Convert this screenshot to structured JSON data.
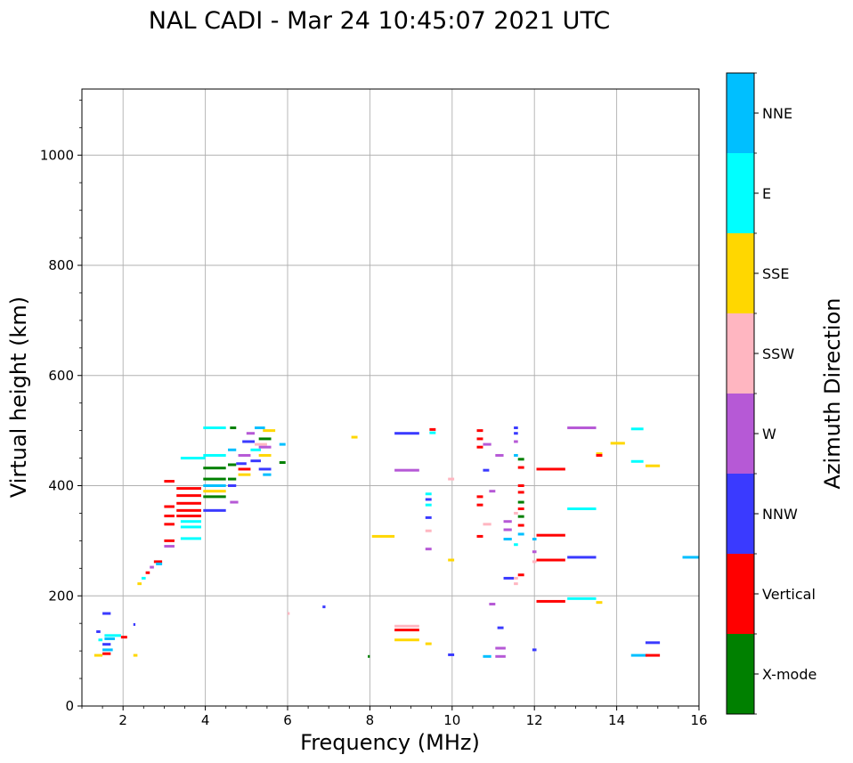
{
  "chart_data": {
    "type": "scatter",
    "title": "NAL CADI - Mar 24 10:45:07 2021 UTC",
    "xlabel": "Frequency (MHz)",
    "ylabel": "Virtual height (km)",
    "xlim": [
      1,
      16
    ],
    "ylim": [
      0,
      1120
    ],
    "xticks": [
      2,
      4,
      6,
      8,
      10,
      12,
      14,
      16
    ],
    "yticks": [
      0,
      200,
      400,
      600,
      800,
      1000
    ],
    "grid": true,
    "colorbar": {
      "label": "Azimuth Direction",
      "categories": [
        {
          "name": "X-mode",
          "color": "#008000"
        },
        {
          "name": "Vertical",
          "color": "#ff0000"
        },
        {
          "name": "NNW",
          "color": "#3a3aff"
        },
        {
          "name": "W",
          "color": "#b659d6"
        },
        {
          "name": "SSW",
          "color": "#ffb6c1"
        },
        {
          "name": "SSE",
          "color": "#ffd700"
        },
        {
          "name": "E",
          "color": "#00ffff"
        },
        {
          "name": "NNE",
          "color": "#00bfff"
        }
      ]
    },
    "segments": [
      {
        "f0": 1.35,
        "f1": 1.45,
        "h": 135,
        "az": "NNW"
      },
      {
        "f0": 1.4,
        "f1": 1.5,
        "h": 120,
        "az": "E"
      },
      {
        "f0": 1.5,
        "f1": 1.7,
        "h": 168,
        "az": "NNW"
      },
      {
        "f0": 1.55,
        "f1": 1.95,
        "h": 128,
        "az": "E"
      },
      {
        "f0": 1.55,
        "f1": 1.8,
        "h": 122,
        "az": "NNE"
      },
      {
        "f0": 1.5,
        "f1": 1.7,
        "h": 112,
        "az": "NNW"
      },
      {
        "f0": 1.5,
        "f1": 1.75,
        "h": 102,
        "az": "NNE"
      },
      {
        "f0": 1.5,
        "f1": 1.7,
        "h": 95,
        "az": "Vertical"
      },
      {
        "f0": 1.3,
        "f1": 1.5,
        "h": 92,
        "az": "SSE"
      },
      {
        "f0": 1.95,
        "f1": 2.1,
        "h": 125,
        "az": "Vertical"
      },
      {
        "f0": 2.25,
        "f1": 2.3,
        "h": 148,
        "az": "NNW"
      },
      {
        "f0": 2.25,
        "f1": 2.35,
        "h": 92,
        "az": "SSE"
      },
      {
        "f0": 2.35,
        "f1": 2.45,
        "h": 222,
        "az": "SSE"
      },
      {
        "f0": 2.45,
        "f1": 2.55,
        "h": 232,
        "az": "E"
      },
      {
        "f0": 2.55,
        "f1": 2.65,
        "h": 242,
        "az": "Vertical"
      },
      {
        "f0": 2.65,
        "f1": 2.75,
        "h": 252,
        "az": "W"
      },
      {
        "f0": 2.75,
        "f1": 2.95,
        "h": 262,
        "az": "Vertical"
      },
      {
        "f0": 2.8,
        "f1": 2.95,
        "h": 258,
        "az": "NNE"
      },
      {
        "f0": 3.0,
        "f1": 3.25,
        "h": 290,
        "az": "W"
      },
      {
        "f0": 3.0,
        "f1": 3.25,
        "h": 300,
        "az": "Vertical"
      },
      {
        "f0": 3.0,
        "f1": 3.25,
        "h": 330,
        "az": "Vertical"
      },
      {
        "f0": 3.0,
        "f1": 3.25,
        "h": 345,
        "az": "Vertical"
      },
      {
        "f0": 3.0,
        "f1": 3.25,
        "h": 362,
        "az": "Vertical"
      },
      {
        "f0": 3.0,
        "f1": 3.25,
        "h": 408,
        "az": "Vertical"
      },
      {
        "f0": 3.3,
        "f1": 3.9,
        "h": 345,
        "az": "Vertical"
      },
      {
        "f0": 3.3,
        "f1": 3.9,
        "h": 355,
        "az": "Vertical"
      },
      {
        "f0": 3.3,
        "f1": 3.9,
        "h": 368,
        "az": "Vertical"
      },
      {
        "f0": 3.3,
        "f1": 3.9,
        "h": 382,
        "az": "Vertical"
      },
      {
        "f0": 3.3,
        "f1": 3.9,
        "h": 395,
        "az": "Vertical"
      },
      {
        "f0": 3.4,
        "f1": 3.9,
        "h": 325,
        "az": "E"
      },
      {
        "f0": 3.4,
        "f1": 3.9,
        "h": 335,
        "az": "E"
      },
      {
        "f0": 3.4,
        "f1": 3.9,
        "h": 304,
        "az": "E"
      },
      {
        "f0": 3.4,
        "f1": 4.0,
        "h": 450,
        "az": "E"
      },
      {
        "f0": 3.95,
        "f1": 4.5,
        "h": 400,
        "az": "NNE"
      },
      {
        "f0": 3.95,
        "f1": 4.5,
        "h": 390,
        "az": "SSE"
      },
      {
        "f0": 3.95,
        "f1": 4.5,
        "h": 380,
        "az": "X-mode"
      },
      {
        "f0": 3.95,
        "f1": 4.5,
        "h": 412,
        "az": "X-mode"
      },
      {
        "f0": 3.95,
        "f1": 4.5,
        "h": 432,
        "az": "X-mode"
      },
      {
        "f0": 3.95,
        "f1": 4.5,
        "h": 355,
        "az": "NNW"
      },
      {
        "f0": 3.95,
        "f1": 4.5,
        "h": 455,
        "az": "E"
      },
      {
        "f0": 3.95,
        "f1": 4.5,
        "h": 505,
        "az": "E"
      },
      {
        "f0": 4.55,
        "f1": 4.75,
        "h": 400,
        "az": "NNW"
      },
      {
        "f0": 4.55,
        "f1": 4.75,
        "h": 412,
        "az": "X-mode"
      },
      {
        "f0": 4.55,
        "f1": 4.75,
        "h": 438,
        "az": "X-mode"
      },
      {
        "f0": 4.55,
        "f1": 4.75,
        "h": 465,
        "az": "NNE"
      },
      {
        "f0": 4.6,
        "f1": 4.75,
        "h": 505,
        "az": "X-mode"
      },
      {
        "f0": 4.6,
        "f1": 4.8,
        "h": 370,
        "az": "W"
      },
      {
        "f0": 4.75,
        "f1": 5.0,
        "h": 440,
        "az": "NNW"
      },
      {
        "f0": 4.8,
        "f1": 5.1,
        "h": 455,
        "az": "W"
      },
      {
        "f0": 4.8,
        "f1": 5.1,
        "h": 430,
        "az": "Vertical"
      },
      {
        "f0": 4.8,
        "f1": 5.1,
        "h": 420,
        "az": "SSE"
      },
      {
        "f0": 4.9,
        "f1": 5.2,
        "h": 480,
        "az": "NNW"
      },
      {
        "f0": 5.0,
        "f1": 5.2,
        "h": 495,
        "az": "W"
      },
      {
        "f0": 5.1,
        "f1": 5.35,
        "h": 465,
        "az": "E"
      },
      {
        "f0": 5.1,
        "f1": 5.35,
        "h": 445,
        "az": "NNW"
      },
      {
        "f0": 5.2,
        "f1": 5.45,
        "h": 505,
        "az": "NNE"
      },
      {
        "f0": 5.2,
        "f1": 5.5,
        "h": 475,
        "az": "SSW"
      },
      {
        "f0": 5.3,
        "f1": 5.6,
        "h": 485,
        "az": "X-mode"
      },
      {
        "f0": 5.3,
        "f1": 5.6,
        "h": 470,
        "az": "W"
      },
      {
        "f0": 5.3,
        "f1": 5.6,
        "h": 455,
        "az": "SSE"
      },
      {
        "f0": 5.3,
        "f1": 5.6,
        "h": 430,
        "az": "NNW"
      },
      {
        "f0": 5.4,
        "f1": 5.6,
        "h": 420,
        "az": "NNE"
      },
      {
        "f0": 5.4,
        "f1": 5.7,
        "h": 500,
        "az": "SSE"
      },
      {
        "f0": 5.8,
        "f1": 5.95,
        "h": 475,
        "az": "NNE"
      },
      {
        "f0": 5.8,
        "f1": 5.95,
        "h": 442,
        "az": "X-mode"
      },
      {
        "f0": 7.55,
        "f1": 7.7,
        "h": 488,
        "az": "SSE"
      },
      {
        "f0": 8.05,
        "f1": 8.6,
        "h": 308,
        "az": "SSE"
      },
      {
        "f0": 8.6,
        "f1": 9.2,
        "h": 495,
        "az": "NNW"
      },
      {
        "f0": 8.6,
        "f1": 9.2,
        "h": 428,
        "az": "W"
      },
      {
        "f0": 8.6,
        "f1": 9.2,
        "h": 145,
        "az": "SSW"
      },
      {
        "f0": 8.6,
        "f1": 9.2,
        "h": 138,
        "az": "Vertical"
      },
      {
        "f0": 8.6,
        "f1": 9.2,
        "h": 120,
        "az": "SSE"
      },
      {
        "f0": 7.95,
        "f1": 8.0,
        "h": 90,
        "az": "X-mode"
      },
      {
        "f0": 9.35,
        "f1": 9.5,
        "h": 385,
        "az": "E"
      },
      {
        "f0": 9.35,
        "f1": 9.5,
        "h": 375,
        "az": "NNW"
      },
      {
        "f0": 9.35,
        "f1": 9.5,
        "h": 365,
        "az": "E"
      },
      {
        "f0": 9.35,
        "f1": 9.5,
        "h": 342,
        "az": "NNW"
      },
      {
        "f0": 9.35,
        "f1": 9.5,
        "h": 318,
        "az": "SSW"
      },
      {
        "f0": 9.35,
        "f1": 9.5,
        "h": 285,
        "az": "W"
      },
      {
        "f0": 9.35,
        "f1": 9.5,
        "h": 113,
        "az": "SSE"
      },
      {
        "f0": 9.45,
        "f1": 9.6,
        "h": 502,
        "az": "Vertical"
      },
      {
        "f0": 9.45,
        "f1": 9.6,
        "h": 496,
        "az": "E"
      },
      {
        "f0": 9.9,
        "f1": 10.05,
        "h": 412,
        "az": "SSW"
      },
      {
        "f0": 9.9,
        "f1": 10.05,
        "h": 265,
        "az": "SSE"
      },
      {
        "f0": 9.9,
        "f1": 10.05,
        "h": 93,
        "az": "NNW"
      },
      {
        "f0": 10.6,
        "f1": 10.75,
        "h": 500,
        "az": "Vertical"
      },
      {
        "f0": 10.6,
        "f1": 10.75,
        "h": 485,
        "az": "Vertical"
      },
      {
        "f0": 10.6,
        "f1": 10.75,
        "h": 470,
        "az": "Vertical"
      },
      {
        "f0": 10.6,
        "f1": 10.75,
        "h": 380,
        "az": "Vertical"
      },
      {
        "f0": 10.6,
        "f1": 10.75,
        "h": 365,
        "az": "Vertical"
      },
      {
        "f0": 10.6,
        "f1": 10.75,
        "h": 308,
        "az": "Vertical"
      },
      {
        "f0": 10.75,
        "f1": 10.95,
        "h": 475,
        "az": "W"
      },
      {
        "f0": 10.75,
        "f1": 10.9,
        "h": 428,
        "az": "NNW"
      },
      {
        "f0": 10.75,
        "f1": 10.95,
        "h": 330,
        "az": "SSW"
      },
      {
        "f0": 10.75,
        "f1": 10.95,
        "h": 90,
        "az": "NNE"
      },
      {
        "f0": 10.9,
        "f1": 11.05,
        "h": 390,
        "az": "W"
      },
      {
        "f0": 10.9,
        "f1": 11.05,
        "h": 185,
        "az": "W"
      },
      {
        "f0": 11.05,
        "f1": 11.25,
        "h": 455,
        "az": "W"
      },
      {
        "f0": 11.1,
        "f1": 11.25,
        "h": 142,
        "az": "NNW"
      },
      {
        "f0": 11.05,
        "f1": 11.3,
        "h": 105,
        "az": "W"
      },
      {
        "f0": 11.05,
        "f1": 11.3,
        "h": 90,
        "az": "W"
      },
      {
        "f0": 11.25,
        "f1": 11.45,
        "h": 335,
        "az": "W"
      },
      {
        "f0": 11.25,
        "f1": 11.45,
        "h": 320,
        "az": "W"
      },
      {
        "f0": 11.25,
        "f1": 11.45,
        "h": 303,
        "az": "NNE"
      },
      {
        "f0": 11.25,
        "f1": 11.5,
        "h": 232,
        "az": "NNW"
      },
      {
        "f0": 11.5,
        "f1": 11.6,
        "h": 505,
        "az": "NNW"
      },
      {
        "f0": 11.5,
        "f1": 11.6,
        "h": 495,
        "az": "NNW"
      },
      {
        "f0": 11.5,
        "f1": 11.6,
        "h": 480,
        "az": "W"
      },
      {
        "f0": 11.5,
        "f1": 11.6,
        "h": 455,
        "az": "NNE"
      },
      {
        "f0": 11.5,
        "f1": 11.6,
        "h": 350,
        "az": "SSW"
      },
      {
        "f0": 11.5,
        "f1": 11.6,
        "h": 293,
        "az": "E"
      },
      {
        "f0": 11.5,
        "f1": 11.6,
        "h": 232,
        "az": "SSW"
      },
      {
        "f0": 11.5,
        "f1": 11.6,
        "h": 222,
        "az": "SSW"
      },
      {
        "f0": 11.6,
        "f1": 11.75,
        "h": 448,
        "az": "X-mode"
      },
      {
        "f0": 11.6,
        "f1": 11.75,
        "h": 433,
        "az": "Vertical"
      },
      {
        "f0": 11.6,
        "f1": 11.75,
        "h": 400,
        "az": "Vertical"
      },
      {
        "f0": 11.6,
        "f1": 11.75,
        "h": 388,
        "az": "Vertical"
      },
      {
        "f0": 11.6,
        "f1": 11.75,
        "h": 370,
        "az": "X-mode"
      },
      {
        "f0": 11.6,
        "f1": 11.75,
        "h": 358,
        "az": "Vertical"
      },
      {
        "f0": 11.6,
        "f1": 11.75,
        "h": 344,
        "az": "X-mode"
      },
      {
        "f0": 11.6,
        "f1": 11.75,
        "h": 328,
        "az": "Vertical"
      },
      {
        "f0": 11.6,
        "f1": 11.75,
        "h": 312,
        "az": "NNE"
      },
      {
        "f0": 11.6,
        "f1": 11.75,
        "h": 238,
        "az": "Vertical"
      },
      {
        "f0": 11.95,
        "f1": 12.05,
        "h": 303,
        "az": "NNE"
      },
      {
        "f0": 11.95,
        "f1": 12.05,
        "h": 280,
        "az": "W"
      },
      {
        "f0": 11.95,
        "f1": 12.05,
        "h": 262,
        "az": "SSW"
      },
      {
        "f0": 11.95,
        "f1": 12.05,
        "h": 102,
        "az": "NNW"
      },
      {
        "f0": 12.05,
        "f1": 12.75,
        "h": 430,
        "az": "Vertical"
      },
      {
        "f0": 12.05,
        "f1": 12.75,
        "h": 310,
        "az": "Vertical"
      },
      {
        "f0": 12.05,
        "f1": 12.75,
        "h": 265,
        "az": "Vertical"
      },
      {
        "f0": 12.05,
        "f1": 12.75,
        "h": 190,
        "az": "Vertical"
      },
      {
        "f0": 12.8,
        "f1": 13.5,
        "h": 505,
        "az": "W"
      },
      {
        "f0": 12.8,
        "f1": 13.5,
        "h": 358,
        "az": "E"
      },
      {
        "f0": 12.8,
        "f1": 13.5,
        "h": 270,
        "az": "NNW"
      },
      {
        "f0": 12.8,
        "f1": 13.5,
        "h": 195,
        "az": "E"
      },
      {
        "f0": 13.5,
        "f1": 13.65,
        "h": 458,
        "az": "SSE"
      },
      {
        "f0": 13.5,
        "f1": 13.65,
        "h": 455,
        "az": "Vertical"
      },
      {
        "f0": 13.5,
        "f1": 13.65,
        "h": 188,
        "az": "SSE"
      },
      {
        "f0": 13.85,
        "f1": 14.2,
        "h": 477,
        "az": "SSE"
      },
      {
        "f0": 14.35,
        "f1": 14.65,
        "h": 444,
        "az": "E"
      },
      {
        "f0": 14.35,
        "f1": 14.65,
        "h": 503,
        "az": "E"
      },
      {
        "f0": 14.35,
        "f1": 14.75,
        "h": 92,
        "az": "NNE"
      },
      {
        "f0": 14.7,
        "f1": 15.05,
        "h": 92,
        "az": "Vertical"
      },
      {
        "f0": 14.7,
        "f1": 15.05,
        "h": 115,
        "az": "NNW"
      },
      {
        "f0": 14.7,
        "f1": 15.05,
        "h": 436,
        "az": "SSE"
      },
      {
        "f0": 15.6,
        "f1": 16.0,
        "h": 270,
        "az": "NNE"
      },
      {
        "f0": 6.0,
        "f1": 6.05,
        "h": 168,
        "az": "SSW"
      },
      {
        "f0": 6.85,
        "f1": 6.92,
        "h": 180,
        "az": "NNW"
      }
    ]
  }
}
